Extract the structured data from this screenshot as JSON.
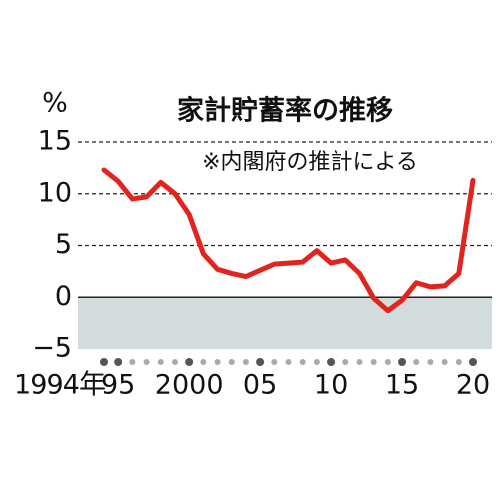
{
  "chart_data": {
    "type": "line",
    "title": "家計貯蓄率の推移",
    "y_label": "%",
    "annotation": "※内閣府の推計による",
    "x": [
      1994,
      1995,
      1996,
      1997,
      1998,
      1999,
      2000,
      2001,
      2002,
      2003,
      2004,
      2005,
      2006,
      2007,
      2008,
      2009,
      2010,
      2011,
      2012,
      2013,
      2014,
      2015,
      2016,
      2017,
      2018,
      2019,
      2020
    ],
    "series": [
      {
        "name": "家計貯蓄率",
        "color": "#e3231d",
        "values": [
          12.3,
          11.2,
          9.5,
          9.7,
          11.1,
          10.0,
          8.0,
          4.2,
          2.7,
          2.3,
          2.0,
          2.6,
          3.2,
          3.3,
          3.4,
          4.5,
          3.3,
          3.6,
          2.3,
          -0.1,
          -1.3,
          -0.3,
          1.4,
          1.0,
          1.1,
          2.3,
          11.3
        ]
      }
    ],
    "xlim": [
      1994,
      2020
    ],
    "xticks": [
      {
        "value": 1994,
        "label": "1994年"
      },
      {
        "value": 1995,
        "label": "95"
      },
      2000,
      {
        "value": 2005,
        "label": "05"
      },
      {
        "value": 2010,
        "label": "10"
      },
      {
        "value": 2015,
        "label": "15"
      },
      {
        "value": 2020,
        "label": "20"
      }
    ],
    "ylim": [
      -5,
      15
    ],
    "yticks": [
      {
        "value": -5,
        "label": "−5"
      },
      0,
      5,
      10,
      15
    ],
    "grid": true,
    "negative_fill": "#d3dcdc"
  }
}
